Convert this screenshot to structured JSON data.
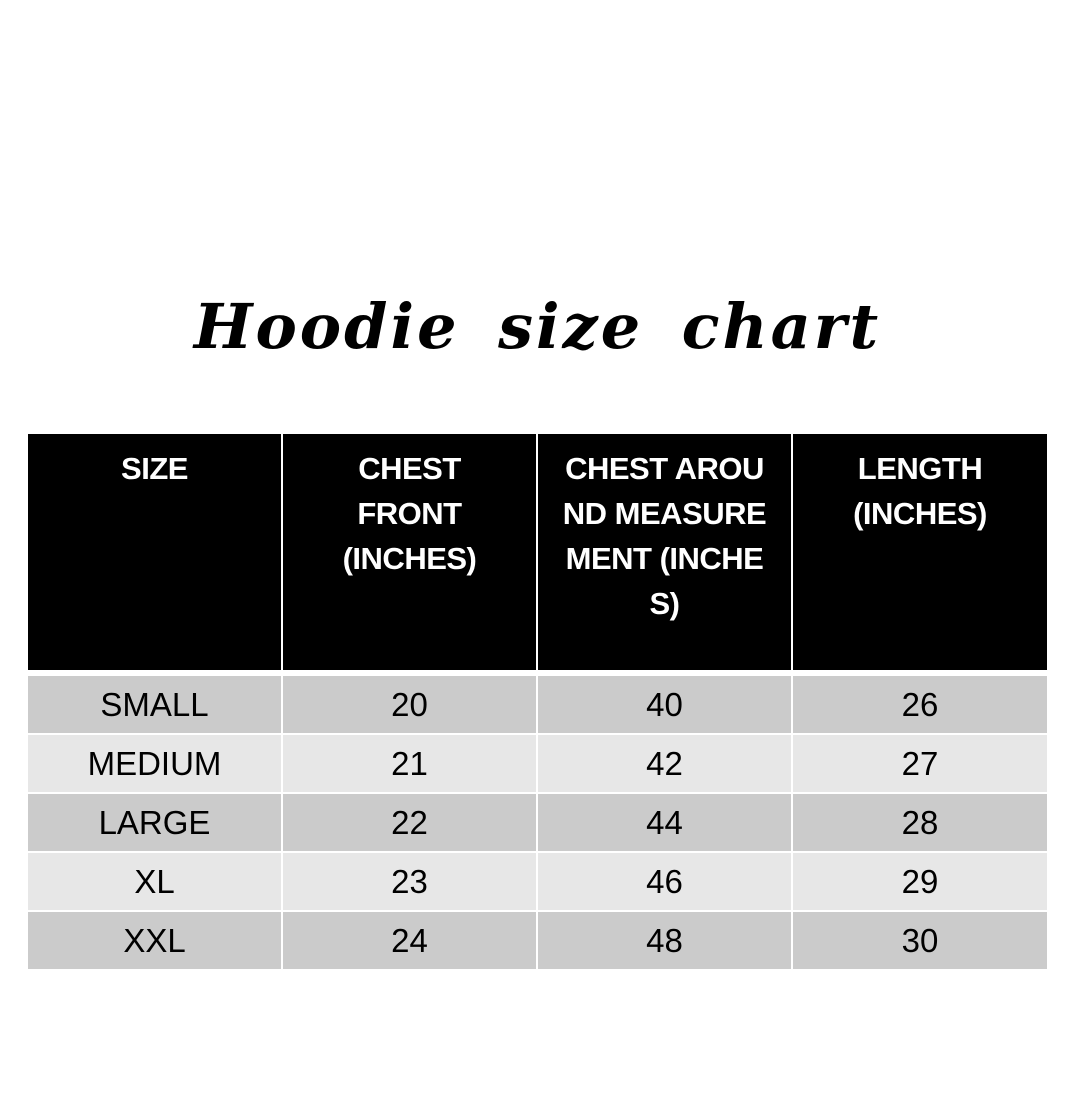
{
  "title": "Hoodie size chart",
  "colors": {
    "header_bg": "#000000",
    "row_dark": "#cbcbcb",
    "row_light": "#e7e7e7"
  },
  "table": {
    "headers": [
      "SIZE",
      "CHEST FRONT (INCHES)",
      "CHEST AROUND MEASUREMENT (INCHES)",
      "LENGTH (INCHES)"
    ],
    "rows": [
      [
        "SMALL",
        "20",
        "40",
        "26"
      ],
      [
        "MEDIUM",
        "21",
        "42",
        "27"
      ],
      [
        "LARGE",
        "22",
        "44",
        "28"
      ],
      [
        "XL",
        "23",
        "46",
        "29"
      ],
      [
        "XXL",
        "24",
        "48",
        "30"
      ]
    ]
  }
}
